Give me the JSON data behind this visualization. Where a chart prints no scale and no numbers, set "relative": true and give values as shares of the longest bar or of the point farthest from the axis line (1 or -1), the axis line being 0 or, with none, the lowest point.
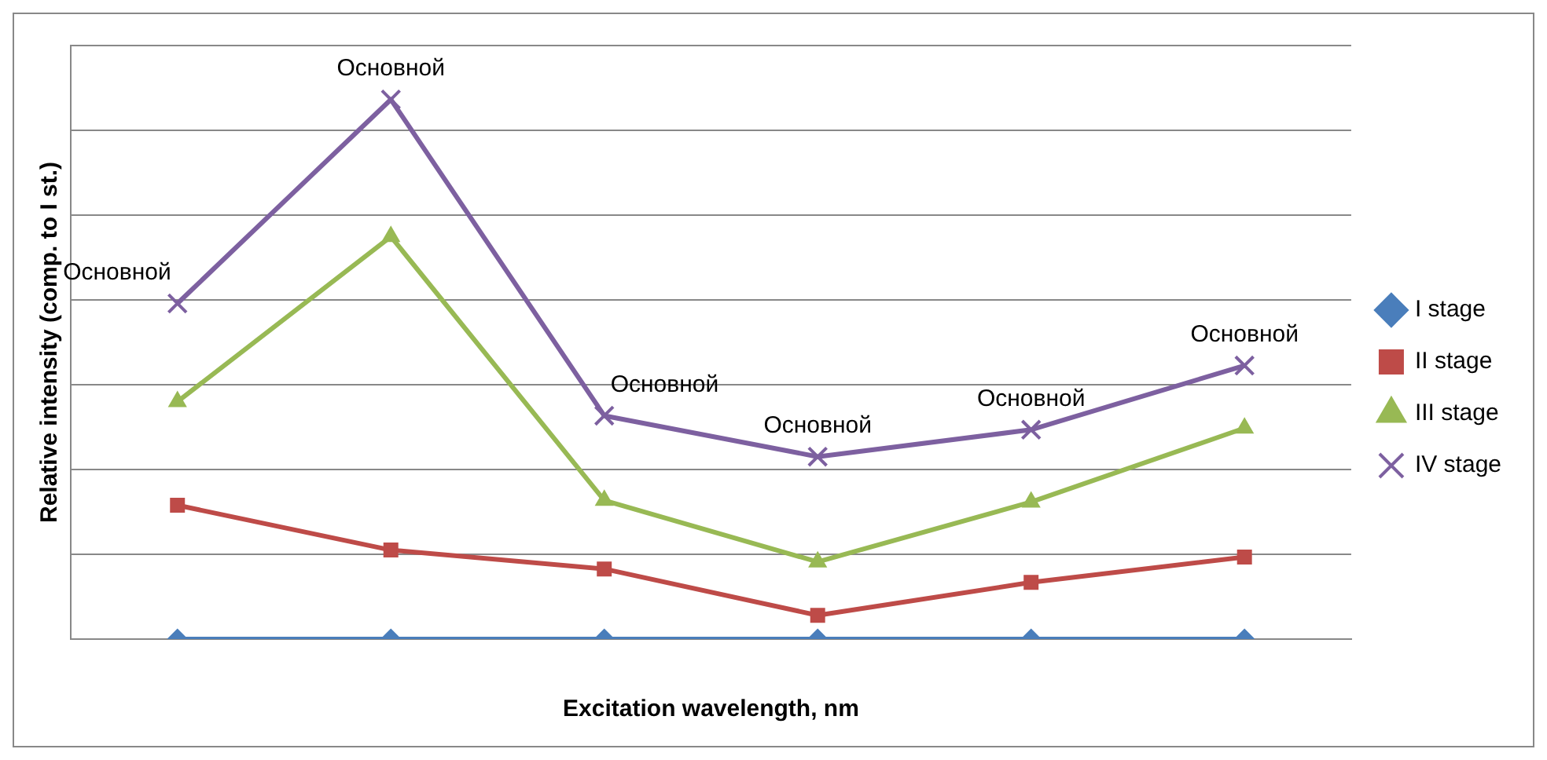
{
  "chart_data": {
    "type": "line",
    "xlabel": "Excitation wavelength, nm",
    "ylabel": "Relative intensity (comp. to I st.)",
    "relative": true,
    "categories": [
      null,
      null,
      null,
      null,
      null,
      null
    ],
    "series": [
      {
        "name": "I stage",
        "color": "#4a7ebb",
        "marker": "diamond",
        "values": [
          0,
          0,
          0,
          0,
          0,
          0
        ]
      },
      {
        "name": "II stage",
        "color": "#be4b48",
        "marker": "square",
        "values": [
          0.248,
          0.165,
          0.13,
          0.044,
          0.105,
          0.152
        ]
      },
      {
        "name": "III stage",
        "color": "#98b954",
        "marker": "triangle",
        "values": [
          0.44,
          0.746,
          0.257,
          0.143,
          0.254,
          0.391
        ]
      },
      {
        "name": "IV stage",
        "color": "#7d60a0",
        "marker": "cross",
        "values": [
          0.622,
          1,
          0.414,
          0.338,
          0.388,
          0.507
        ]
      }
    ],
    "annotations": [
      "Основной",
      "Основной",
      "Основной",
      "Основной",
      "Основной",
      "Основной"
    ],
    "grid": "y",
    "legend": "right"
  }
}
